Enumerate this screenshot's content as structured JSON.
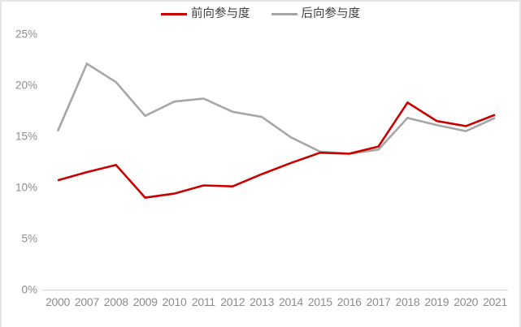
{
  "chart_data": {
    "type": "line",
    "title": "",
    "xlabel": "",
    "ylabel": "",
    "categories": [
      "2000",
      "2007",
      "2008",
      "2009",
      "2010",
      "2011",
      "2012",
      "2013",
      "2014",
      "2015",
      "2016",
      "2017",
      "2018",
      "2019",
      "2020",
      "2021"
    ],
    "series": [
      {
        "name": "前向参与度",
        "color": "#c80000",
        "values": [
          10.7,
          11.5,
          12.2,
          9.0,
          9.4,
          10.2,
          10.1,
          11.3,
          12.4,
          13.4,
          13.3,
          14.0,
          18.3,
          16.5,
          16.0,
          17.1
        ]
      },
      {
        "name": "后向参与度",
        "color": "#a6a6a6",
        "values": [
          15.5,
          22.1,
          20.3,
          17.0,
          18.4,
          18.7,
          17.4,
          16.9,
          14.9,
          13.5,
          13.3,
          13.7,
          16.8,
          16.1,
          15.5,
          16.8
        ]
      }
    ],
    "ylim": [
      0,
      25
    ],
    "ytick_labels": [
      "0%",
      "5%",
      "10%",
      "15%",
      "20%",
      "25%"
    ],
    "ytick_values": [
      0,
      5,
      10,
      15,
      20,
      25
    ],
    "grid": false,
    "legend_position": "top-center"
  },
  "colors": {
    "axis_line": "#d9d9d9",
    "axis_label": "#8c8c8c",
    "legend_text": "#3f3f3f",
    "border": "#e4e4e4",
    "background": "#ffffff"
  }
}
